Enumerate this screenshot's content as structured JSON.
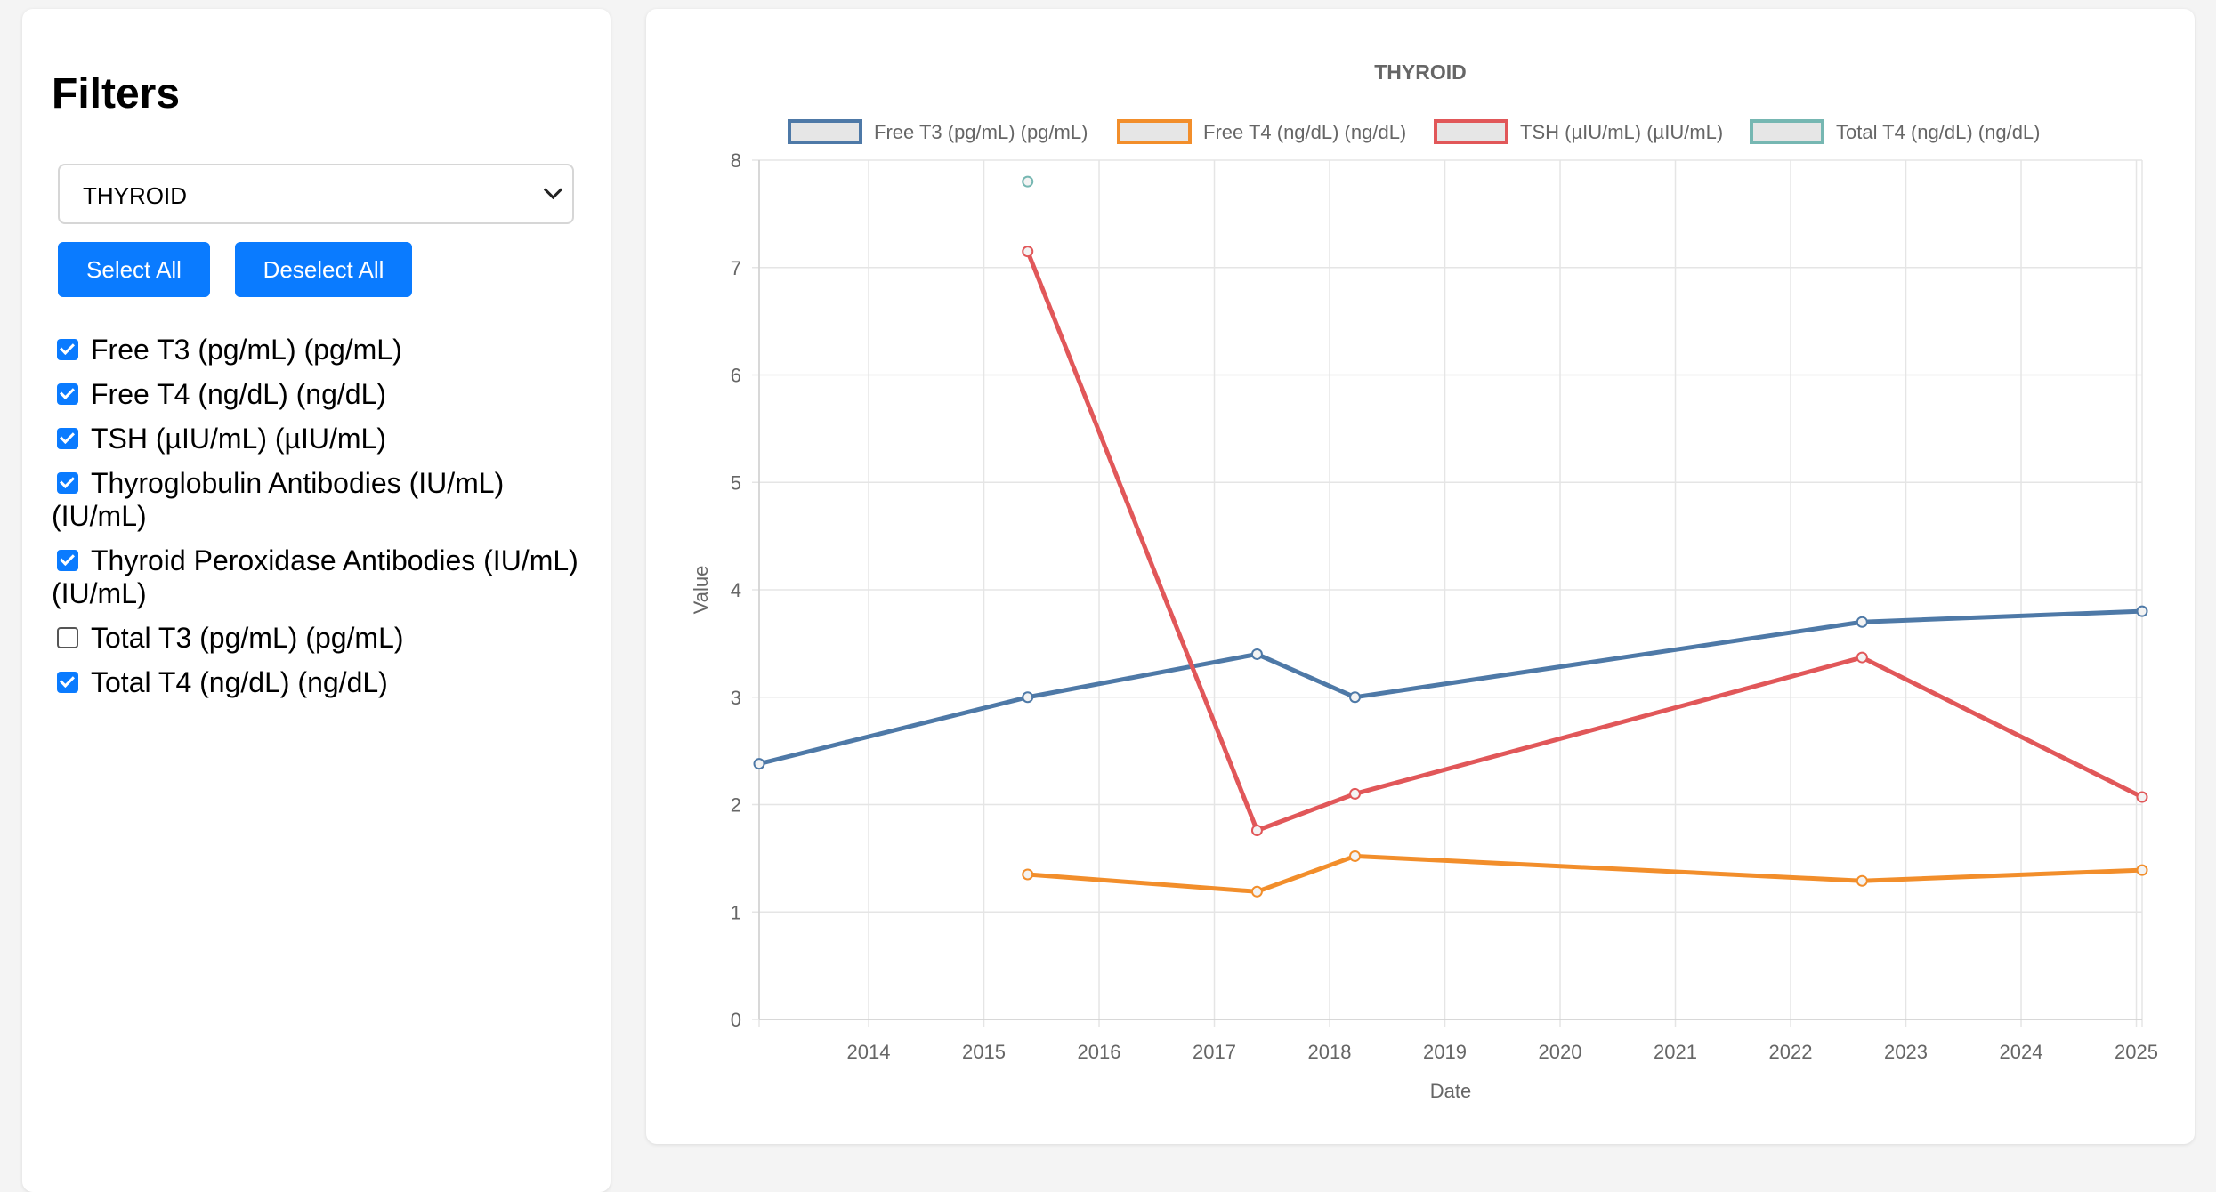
{
  "sidebar": {
    "title": "Filters",
    "category_select": {
      "value": "THYROID"
    },
    "select_all_label": "Select All",
    "deselect_all_label": "Deselect All",
    "tests": [
      {
        "label": "Free T3 (pg/mL) (pg/mL)",
        "checked": true
      },
      {
        "label": "Free T4 (ng/dL) (ng/dL)",
        "checked": true
      },
      {
        "label": "TSH (µIU/mL) (µIU/mL)",
        "checked": true
      },
      {
        "label": "Thyroglobulin Antibodies (IU/mL) (IU/mL)",
        "checked": true
      },
      {
        "label": "Thyroid Peroxidase Antibodies (IU/mL) (IU/mL)",
        "checked": true
      },
      {
        "label": "Total T3 (pg/mL) (pg/mL)",
        "checked": false
      },
      {
        "label": "Total T4 (ng/dL) (ng/dL)",
        "checked": true
      }
    ]
  },
  "chart_data": {
    "type": "line",
    "title": "THYROID",
    "xlabel": "Date",
    "ylabel": "Value",
    "xlim": [
      2013.05,
      2025.05
    ],
    "ylim": [
      0,
      8
    ],
    "x_ticks": [
      2014,
      2015,
      2016,
      2017,
      2018,
      2019,
      2020,
      2021,
      2022,
      2023,
      2024,
      2025
    ],
    "y_ticks": [
      0,
      1,
      2,
      3,
      4,
      5,
      6,
      7,
      8
    ],
    "grid": true,
    "legend_position": "top",
    "series": [
      {
        "name": "Free T3 (pg/mL) (pg/mL)",
        "color": "#4e79a7",
        "x": [
          2013.05,
          2015.38,
          2017.37,
          2018.22,
          2022.62,
          2025.05
        ],
        "y": [
          2.38,
          3.0,
          3.4,
          3.0,
          3.7,
          3.8
        ]
      },
      {
        "name": "Free T4 (ng/dL) (ng/dL)",
        "color": "#f28e2b",
        "x": [
          2015.38,
          2017.37,
          2018.22,
          2022.62,
          2025.05
        ],
        "y": [
          1.35,
          1.19,
          1.52,
          1.29,
          1.39
        ]
      },
      {
        "name": "TSH (µIU/mL) (µIU/mL)",
        "color": "#e15759",
        "x": [
          2015.38,
          2017.37,
          2018.22,
          2022.62,
          2025.05
        ],
        "y": [
          7.15,
          1.76,
          2.1,
          3.37,
          2.07
        ]
      },
      {
        "name": "Total T4 (ng/dL) (ng/dL)",
        "color": "#76b7b2",
        "x": [
          2015.38
        ],
        "y": [
          7.8
        ]
      }
    ]
  }
}
